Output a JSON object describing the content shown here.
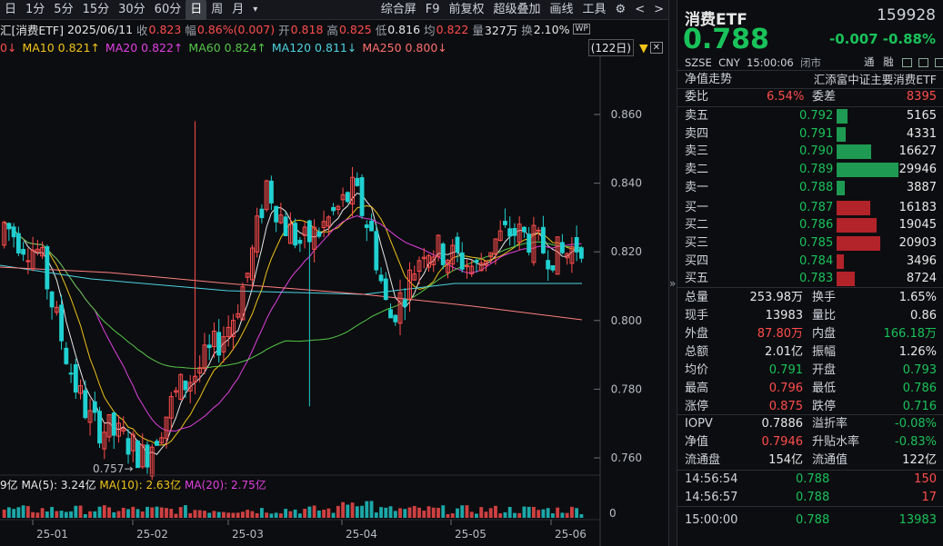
{
  "toolbar": {
    "items": [
      "日",
      "1分",
      "5分",
      "15分",
      "30分",
      "60分",
      "日",
      "周",
      "月"
    ],
    "menu_icon": "▾",
    "right": [
      "综合屏",
      "F9",
      "前复权",
      "超级叠加",
      "画线",
      "工具"
    ],
    "gear": "⚙",
    "prev": "<",
    "next": ">"
  },
  "info": {
    "name": "汇添富中证主要消费ETF",
    "name_short": "汇[消费ETF]",
    "date": "2025/06/11",
    "close_label": "收",
    "close": "0.823",
    "amp_label": "幅",
    "amp": "0.86%(0.007)",
    "open_label": "开",
    "open": "0.818",
    "high_label": "高",
    "high": "0.825",
    "low_label": "低",
    "low": "0.816",
    "avg_label": "均",
    "avg": "0.822",
    "vol_label": "量",
    "vol": "327万",
    "turn_label": "换",
    "turn": "2.10%",
    "wp": "WP"
  },
  "ma": {
    "ma5": "0↓",
    "ma10": "MA10 0.821↑",
    "ma20": "MA20 0.822↑",
    "ma60": "MA60 0.824↑",
    "ma120": "MA120 0.811↓",
    "ma250": "MA250 0.800↓",
    "days": "(122日)"
  },
  "chart_data": {
    "type": "candlestick",
    "yticks": [
      "0.860",
      "0.840",
      "0.820",
      "0.800",
      "0.780",
      "0.760"
    ],
    "ytick_values": [
      0.86,
      0.84,
      0.82,
      0.8,
      0.78,
      0.76
    ],
    "xticks": [
      "25-01",
      "25-02",
      "25-03",
      "25-04",
      "25-05",
      "25-06"
    ],
    "low_marker": "0.757",
    "vol_legend": {
      "v": "9亿",
      "ma5": "MA(5): 3.24亿",
      "ma10": "MA(10): 2.63亿",
      "ma20": "MA(20): 2.75亿"
    },
    "vol_zero": "0"
  },
  "colors": {
    "up": "#ff4d4d",
    "down": "#20d0d0",
    "ma5": "#e8e8e8",
    "ma10": "#f0c419",
    "ma20": "#e040e0",
    "ma60": "#56c64a",
    "ma120": "#4dd2e0",
    "ma250": "#ff8080"
  },
  "quote": {
    "name": "消费ETF",
    "code": "159928",
    "price": "0.788",
    "chg": "-0.007",
    "pct": "-0.88%",
    "exch": "SZSE",
    "cur": "CNY",
    "time": "15:00:06",
    "status": "闭市",
    "tong": "通",
    "rong": "融"
  },
  "nav_title": "净值走势",
  "fund_name": "汇添富中证主要消费ETF",
  "weibi": {
    "l1": "委比",
    "v1": "6.54%",
    "l2": "委差",
    "v2": "8395"
  },
  "asks": [
    {
      "label": "卖五",
      "price": "0.792",
      "vol": "5165",
      "w": 0.17
    },
    {
      "label": "卖四",
      "price": "0.791",
      "vol": "4331",
      "w": 0.14
    },
    {
      "label": "卖三",
      "price": "0.790",
      "vol": "16627",
      "w": 0.56
    },
    {
      "label": "卖二",
      "price": "0.789",
      "vol": "29946",
      "w": 1.0
    },
    {
      "label": "卖一",
      "price": "0.788",
      "vol": "3887",
      "w": 0.13
    }
  ],
  "bids": [
    {
      "label": "买一",
      "price": "0.787",
      "vol": "16183",
      "w": 0.54
    },
    {
      "label": "买二",
      "price": "0.786",
      "vol": "19045",
      "w": 0.64
    },
    {
      "label": "买三",
      "price": "0.785",
      "vol": "20903",
      "w": 0.7
    },
    {
      "label": "买四",
      "price": "0.784",
      "vol": "3496",
      "w": 0.12
    },
    {
      "label": "买五",
      "price": "0.783",
      "vol": "8724",
      "w": 0.29
    }
  ],
  "stats": [
    {
      "l1": "总量",
      "v1": "253.98万",
      "c1": "white",
      "l2": "换手",
      "v2": "1.65%",
      "c2": "white"
    },
    {
      "l1": "现手",
      "v1": "13983",
      "c1": "white",
      "l2": "量比",
      "v2": "0.86",
      "c2": "white"
    },
    {
      "l1": "外盘",
      "v1": "87.80万",
      "c1": "red",
      "l2": "内盘",
      "v2": "166.18万",
      "c2": "green"
    },
    {
      "l1": "总额",
      "v1": "2.01亿",
      "c1": "white",
      "l2": "振幅",
      "v2": "1.26%",
      "c2": "white"
    },
    {
      "l1": "均价",
      "v1": "0.791",
      "c1": "green",
      "l2": "开盘",
      "v2": "0.793",
      "c2": "green"
    },
    {
      "l1": "最高",
      "v1": "0.796",
      "c1": "red",
      "l2": "最低",
      "v2": "0.786",
      "c2": "green"
    },
    {
      "l1": "涨停",
      "v1": "0.875",
      "c1": "red",
      "l2": "跌停",
      "v2": "0.716",
      "c2": "green"
    }
  ],
  "iopv": [
    {
      "l1": "IOPV",
      "v1": "0.7886",
      "c1": "white",
      "l2": "溢折率",
      "v2": "-0.08%",
      "c2": "green"
    },
    {
      "l1": "净值",
      "v1": "0.7946",
      "c1": "red",
      "l2": "升贴水率",
      "v2": "-0.83%",
      "c2": "green"
    },
    {
      "l1": "流通盘",
      "v1": "154亿",
      "c1": "white",
      "l2": "流通值",
      "v2": "122亿",
      "c2": "white"
    }
  ],
  "ticks": [
    {
      "t": "14:56:54",
      "p": "0.788",
      "v": "150",
      "c": "red"
    },
    {
      "t": "14:56:57",
      "p": "0.788",
      "v": "17",
      "c": "red"
    },
    {
      "t": "15:00:00",
      "p": "0.788",
      "v": "13983",
      "c": "green"
    }
  ],
  "collapse": "»"
}
